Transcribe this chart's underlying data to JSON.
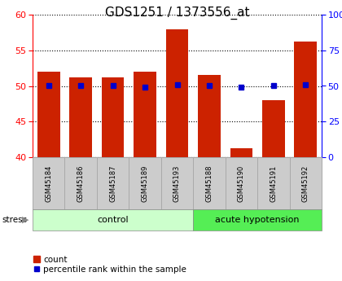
{
  "title": "GDS1251 / 1373556_at",
  "samples": [
    "GSM45184",
    "GSM45186",
    "GSM45187",
    "GSM45189",
    "GSM45193",
    "GSM45188",
    "GSM45190",
    "GSM45191",
    "GSM45192"
  ],
  "counts": [
    52.0,
    51.2,
    51.2,
    52.0,
    58.0,
    51.5,
    41.2,
    48.0,
    56.2
  ],
  "percentiles": [
    50.0,
    50.2,
    50.0,
    49.2,
    51.0,
    50.2,
    49.0,
    50.0,
    51.0
  ],
  "bar_color": "#cc2200",
  "dot_color": "#0000cc",
  "ylim_left": [
    40,
    60
  ],
  "ylim_right": [
    0,
    100
  ],
  "yticks_left": [
    40,
    45,
    50,
    55,
    60
  ],
  "yticks_right": [
    0,
    25,
    50,
    75,
    100
  ],
  "ytick_labels_right": [
    "0",
    "25",
    "50",
    "75",
    "100%"
  ],
  "groups": [
    {
      "label": "control",
      "start": 0,
      "end": 5,
      "color": "#ccffcc"
    },
    {
      "label": "acute hypotension",
      "start": 5,
      "end": 9,
      "color": "#55ee55"
    }
  ],
  "stress_label": "stress",
  "legend_count_label": "count",
  "legend_pct_label": "percentile rank within the sample",
  "background_color": "#ffffff",
  "plot_bg_color": "#ffffff",
  "title_fontsize": 11,
  "bar_width": 0.7
}
